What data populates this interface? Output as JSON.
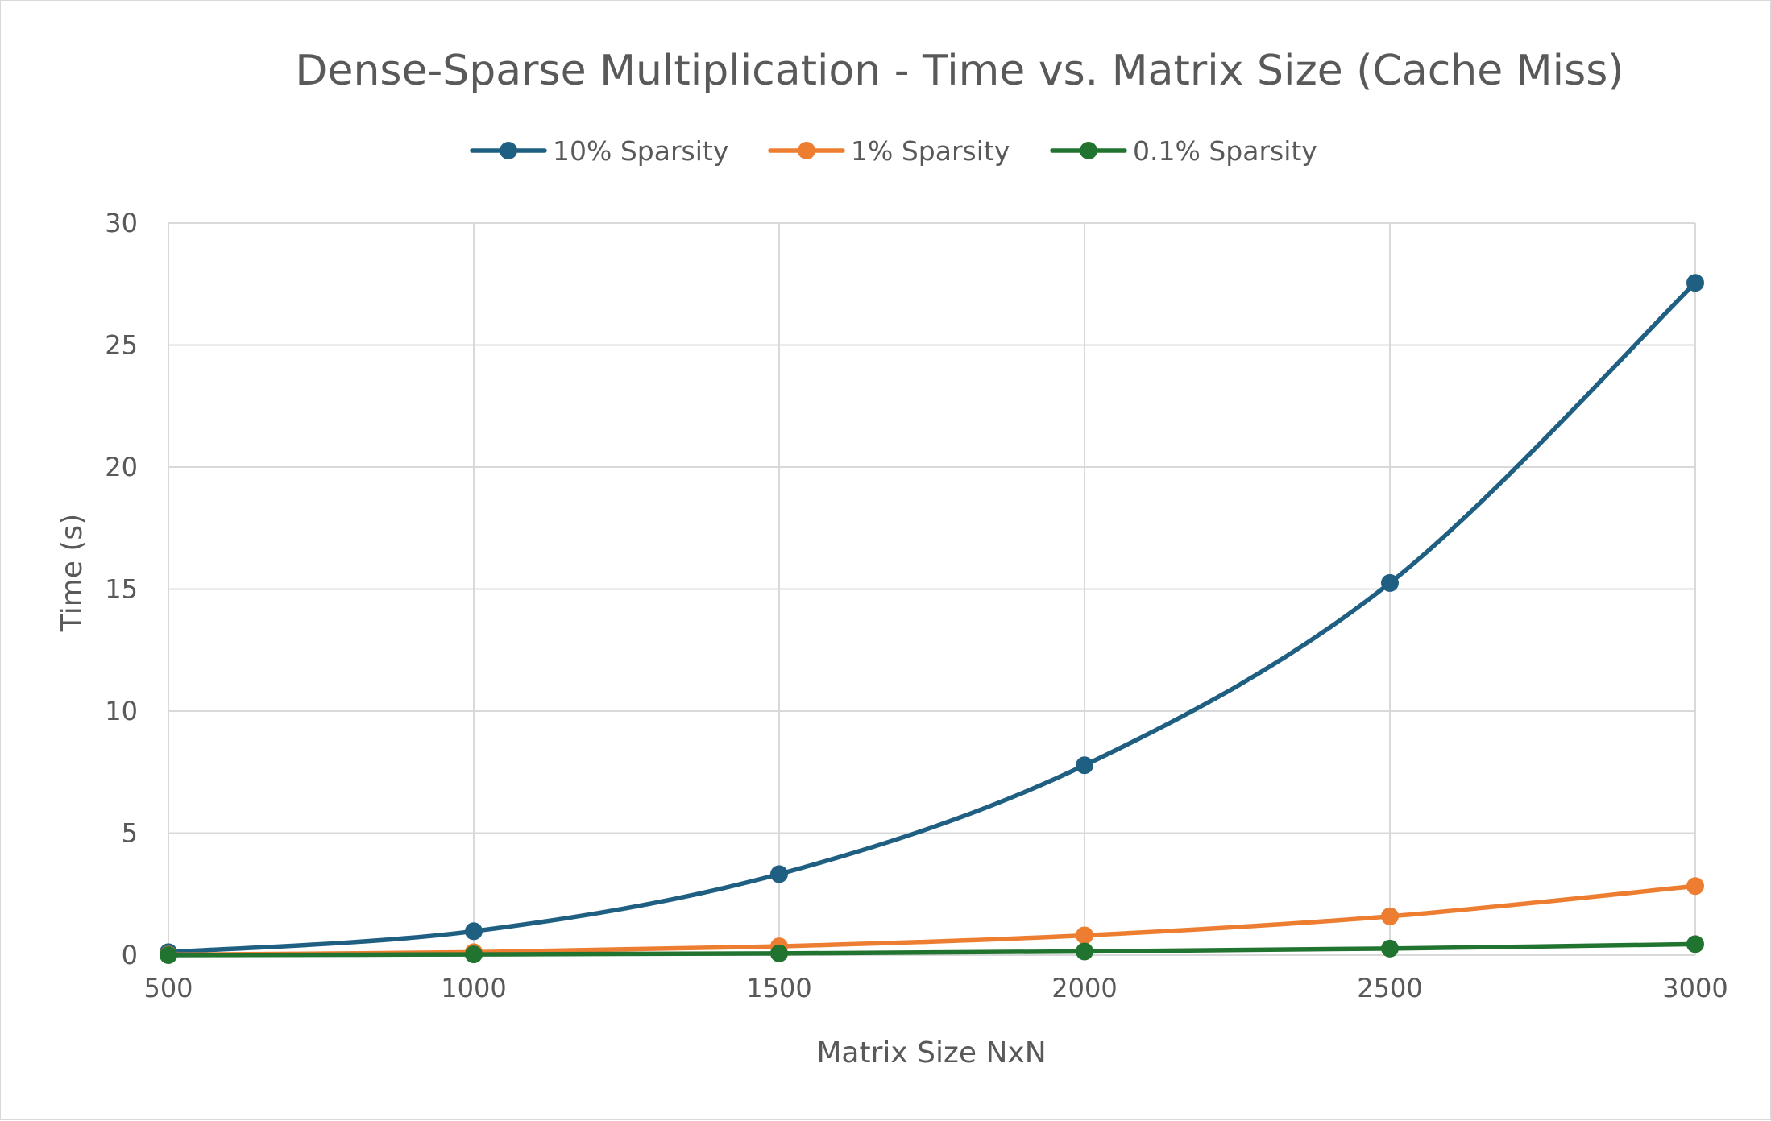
{
  "chart_data": {
    "type": "line",
    "title": "Dense-Sparse Multiplication - Time vs. Matrix Size (Cache Miss)",
    "xlabel": "Matrix Size NxN",
    "ylabel": "Time (s)",
    "x": [
      500,
      1000,
      1500,
      2000,
      2500,
      3000
    ],
    "xlim": [
      500,
      3000
    ],
    "ylim": [
      0,
      30
    ],
    "x_ticks": [
      "500",
      "1000",
      "1500",
      "2000",
      "2500",
      "3000"
    ],
    "y_ticks": [
      "0",
      "5",
      "10",
      "15",
      "20",
      "25",
      "30"
    ],
    "grid": true,
    "smooth": true,
    "legend_position": "top",
    "series": [
      {
        "name": "10% Sparsity",
        "color": "#1f5f82",
        "values": [
          0.12,
          0.98,
          3.32,
          7.78,
          15.25,
          27.55
        ]
      },
      {
        "name": "1% Sparsity",
        "color": "#ed7d31",
        "values": [
          0.02,
          0.12,
          0.36,
          0.81,
          1.59,
          2.83
        ]
      },
      {
        "name": "0.1% Sparsity",
        "color": "#217330",
        "values": [
          0.0,
          0.03,
          0.07,
          0.15,
          0.27,
          0.45
        ]
      }
    ]
  }
}
